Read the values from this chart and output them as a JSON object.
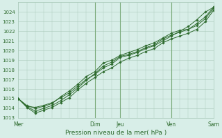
{
  "background_color": "#d8eee8",
  "grid_color": "#aacaba",
  "line_color": "#2d6a2d",
  "marker_color": "#2d6a2d",
  "xlabel": "Pression niveau de la mer( hPa )",
  "ylim": [
    1013,
    1025
  ],
  "xlim": [
    0,
    23
  ],
  "yticks": [
    1013,
    1014,
    1015,
    1016,
    1017,
    1018,
    1019,
    1020,
    1021,
    1022,
    1023,
    1024
  ],
  "xtick_labels": [
    "Mer",
    "Dim",
    "Jeu",
    "Ven",
    "Sam"
  ],
  "xtick_positions": [
    0,
    9,
    12,
    18,
    23
  ],
  "vline_positions": [
    9,
    12,
    18
  ],
  "vline_color": "#7aaa7a",
  "series": [
    [
      1015.0,
      1014.2,
      1014.1,
      1014.3,
      1014.6,
      1015.1,
      1015.6,
      1016.3,
      1017.0,
      1017.5,
      1018.2,
      1018.6,
      1019.3,
      1019.5,
      1019.8,
      1020.2,
      1020.5,
      1021.0,
      1021.5,
      1022.0,
      1022.5,
      1023.2,
      1024.0,
      1024.5
    ],
    [
      1015.0,
      1014.1,
      1013.5,
      1013.8,
      1014.1,
      1014.6,
      1015.1,
      1015.9,
      1016.6,
      1017.2,
      1017.8,
      1018.2,
      1018.8,
      1019.2,
      1019.5,
      1019.9,
      1020.2,
      1020.8,
      1021.2,
      1021.5,
      1021.8,
      1022.2,
      1023.0,
      1024.2
    ],
    [
      1015.0,
      1014.2,
      1013.7,
      1014.0,
      1014.3,
      1014.8,
      1015.4,
      1016.1,
      1016.9,
      1017.6,
      1018.4,
      1018.8,
      1019.4,
      1019.6,
      1019.9,
      1020.3,
      1020.6,
      1021.2,
      1021.6,
      1021.9,
      1022.2,
      1022.6,
      1023.3,
      1024.4
    ],
    [
      1015.0,
      1014.3,
      1014.0,
      1014.2,
      1014.5,
      1015.2,
      1015.8,
      1016.5,
      1017.3,
      1017.8,
      1018.7,
      1019.0,
      1019.5,
      1019.8,
      1020.1,
      1020.5,
      1020.8,
      1021.3,
      1021.8,
      1022.1,
      1022.2,
      1022.8,
      1023.5,
      1024.5
    ]
  ]
}
